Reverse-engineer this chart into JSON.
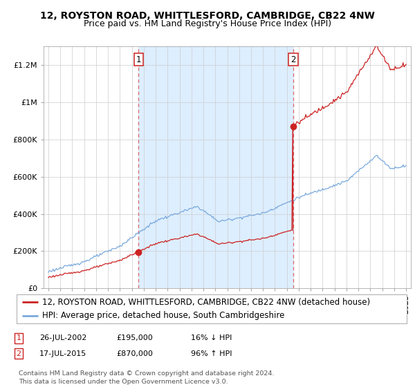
{
  "title": "12, ROYSTON ROAD, WHITTLESFORD, CAMBRIDGE, CB22 4NW",
  "subtitle": "Price paid vs. HM Land Registry's House Price Index (HPI)",
  "ylabel_ticks": [
    "£0",
    "£200K",
    "£400K",
    "£600K",
    "£800K",
    "£1M",
    "£1.2M"
  ],
  "ytick_values": [
    0,
    200000,
    400000,
    600000,
    800000,
    1000000,
    1200000
  ],
  "ylim": [
    0,
    1300000
  ],
  "xlim_start": 1994.6,
  "xlim_end": 2025.4,
  "sale1_x": 2002.56,
  "sale1_y": 195000,
  "sale2_x": 2015.54,
  "sale2_y": 870000,
  "sale1_label": "1",
  "sale2_label": "2",
  "sale1_date": "26-JUL-2002",
  "sale1_price": "£195,000",
  "sale1_hpi": "16% ↓ HPI",
  "sale2_date": "17-JUL-2015",
  "sale2_price": "£870,000",
  "sale2_hpi": "96% ↑ HPI",
  "line_color_red": "#CC2222",
  "line_color_blue": "#7AAADD",
  "vline_color": "#DD6666",
  "shade_color": "#DDEEFF",
  "background_color": "#FFFFFF",
  "legend_label_red": "12, ROYSTON ROAD, WHITTLESFORD, CAMBRIDGE, CB22 4NW (detached house)",
  "legend_label_blue": "HPI: Average price, detached house, South Cambridgeshire",
  "footer": "Contains HM Land Registry data © Crown copyright and database right 2024.\nThis data is licensed under the Open Government Licence v3.0.",
  "title_fontsize": 10,
  "subtitle_fontsize": 9,
  "tick_fontsize": 8,
  "legend_fontsize": 8.5,
  "annotation_fontsize": 8
}
